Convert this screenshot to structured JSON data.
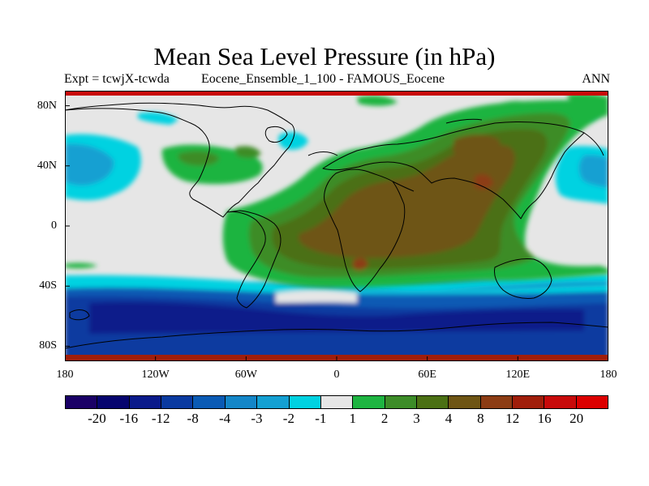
{
  "title": "Mean Sea Level Pressure (in hPa)",
  "subtitle_left": "Expt = tcwjX-tcwda",
  "subtitle_center": "Eocene_Ensemble_1_100 - FAMOUS_Eocene",
  "subtitle_right": "ANN",
  "lat_labels": [
    {
      "label": "80N",
      "lat": 80
    },
    {
      "label": "40N",
      "lat": 40
    },
    {
      "label": "0",
      "lat": 0
    },
    {
      "label": "40S",
      "lat": -40
    },
    {
      "label": "80S",
      "lat": -80
    }
  ],
  "lon_labels": [
    {
      "label": "180",
      "lon": -180
    },
    {
      "label": "120W",
      "lon": -120
    },
    {
      "label": "60W",
      "lon": -60
    },
    {
      "label": "0",
      "lon": 0
    },
    {
      "label": "60E",
      "lon": 60
    },
    {
      "label": "120E",
      "lon": 120
    },
    {
      "label": "180",
      "lon": 180
    }
  ],
  "colorbar": {
    "colors": [
      "#1a0066",
      "#06046e",
      "#0a1a8a",
      "#0a3aa0",
      "#0a5ab4",
      "#1486c8",
      "#14a0d2",
      "#00d2e1",
      "#e6e6e6",
      "#1eb441",
      "#3c8c28",
      "#4b7014",
      "#6e5514",
      "#8c3c14",
      "#a01e0a",
      "#c80a0a",
      "#dc0000"
    ],
    "labels": [
      "-20",
      "-16",
      "-12",
      "-8",
      "-4",
      "-3",
      "-2",
      "-1",
      "1",
      "2",
      "3",
      "4",
      "8",
      "12",
      "16",
      "20"
    ]
  },
  "chart_data": {
    "type": "heatmap",
    "title": "Mean Sea Level Pressure (in hPa)",
    "variable": "Mean Sea Level Pressure",
    "units": "hPa",
    "xlim": [
      -180,
      180
    ],
    "ylim": [
      -90,
      90
    ],
    "contour_levels": [
      -20,
      -16,
      -12,
      -8,
      -4,
      -3,
      -2,
      -1,
      1,
      2,
      3,
      4,
      8,
      12,
      16,
      20
    ],
    "regions": [
      {
        "lon": [
          -40,
          160
        ],
        "lat": [
          -55,
          40
        ],
        "value_range": [
          1,
          2
        ]
      },
      {
        "lon": [
          -30,
          140
        ],
        "lat": [
          -45,
          45
        ],
        "value_range": [
          2,
          3
        ]
      },
      {
        "lon": [
          -20,
          120
        ],
        "lat": [
          -40,
          42
        ],
        "value_range": [
          3,
          4
        ]
      },
      {
        "lon": [
          0,
          110
        ],
        "lat": [
          -35,
          40
        ],
        "value_range": [
          4,
          8
        ]
      },
      {
        "lon": [
          90,
          100
        ],
        "lat": [
          28,
          36
        ],
        "value_range": [
          8,
          12
        ]
      },
      {
        "lon": [
          5,
          25
        ],
        "lat": [
          -32,
          -20
        ],
        "value_range": [
          8,
          12
        ]
      },
      {
        "lon": [
          -180,
          180
        ],
        "lat": [
          -85,
          -45
        ],
        "value_range": [
          -12,
          -2
        ]
      },
      {
        "lon": [
          -180,
          -130
        ],
        "lat": [
          -5,
          45
        ],
        "value_range": [
          -4,
          -1
        ]
      },
      {
        "lon": [
          140,
          180
        ],
        "lat": [
          10,
          50
        ],
        "value_range": [
          -4,
          -1
        ]
      }
    ]
  }
}
